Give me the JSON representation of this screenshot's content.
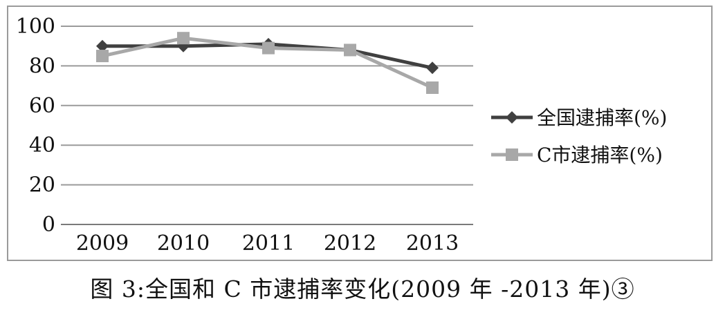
{
  "chart_data": {
    "type": "line",
    "categories": [
      "2009",
      "2010",
      "2011",
      "2012",
      "2013"
    ],
    "series": [
      {
        "name": "全国逮捕率(%)",
        "values": [
          90,
          90,
          91,
          88,
          79
        ],
        "color": "#404040",
        "marker": "diamond"
      },
      {
        "name": "C市逮捕率(%)",
        "values": [
          85,
          94,
          89,
          88,
          69
        ],
        "color": "#a8a8a8",
        "marker": "square"
      }
    ],
    "yticks": [
      0,
      20,
      40,
      60,
      80,
      100
    ],
    "ylim": [
      0,
      100
    ],
    "grid": true,
    "legend_position": "right",
    "title": "",
    "xlabel": "",
    "ylabel": ""
  },
  "caption": "图 3:全国和 C 市逮捕率变化(2009 年 -2013 年)③"
}
